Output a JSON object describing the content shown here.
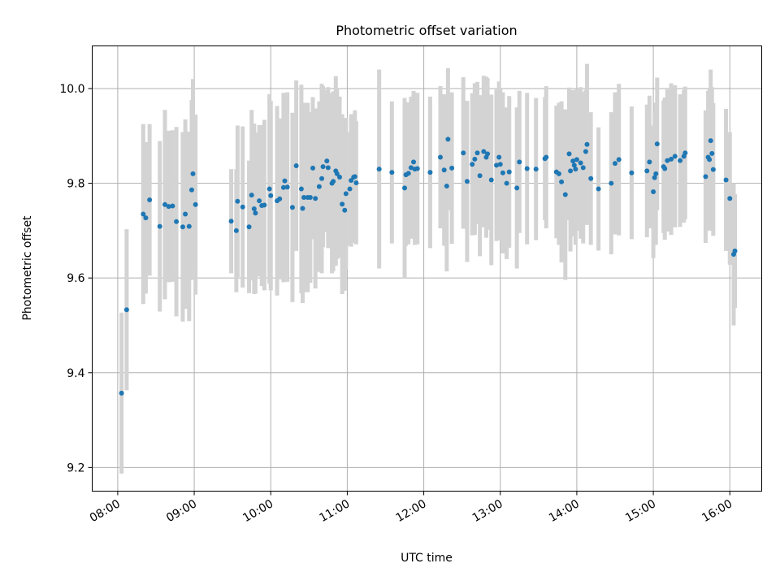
{
  "chart_data": {
    "type": "scatter",
    "title": "Photometric offset variation",
    "xlabel": "UTC time",
    "ylabel": "Photometric offset",
    "xlim": [
      "07:40",
      "16:25"
    ],
    "ylim": [
      9.15,
      10.09
    ],
    "grid": true,
    "x_ticks": [
      "08:00",
      "09:00",
      "10:00",
      "11:00",
      "12:00",
      "13:00",
      "14:00",
      "15:00",
      "16:00"
    ],
    "y_ticks": [
      "9.2",
      "9.4",
      "9.6",
      "9.8",
      "10.0"
    ],
    "colors": {
      "point": "#1f77b4",
      "errorbar": "#d3d3d3",
      "grid": "#b0b0b0"
    },
    "series": [
      {
        "x": [
          "08:03",
          "08:07",
          "08:20",
          "08:22",
          "08:25",
          "08:33",
          "08:37",
          "08:40",
          "08:43",
          "08:46",
          "08:51",
          "08:53",
          "08:56",
          "08:58",
          "08:59",
          "09:01",
          "09:29",
          "09:33",
          "09:34",
          "09:38",
          "09:43",
          "09:45",
          "09:47",
          "09:48",
          "09:51",
          "09:53",
          "09:55",
          "09:59",
          "10:00",
          "10:05",
          "10:07",
          "10:10",
          "10:11",
          "10:13",
          "10:17",
          "10:20",
          "10:24",
          "10:25",
          "10:26",
          "10:29",
          "10:31",
          "10:33",
          "10:35",
          "10:38",
          "10:40",
          "10:41",
          "10:44",
          "10:45",
          "10:48",
          "10:49",
          "10:51",
          "10:52",
          "10:54",
          "10:56",
          "10:58",
          "10:59",
          "11:02",
          "11:03",
          "11:05",
          "11:06",
          "11:07",
          "11:25",
          "11:35",
          "11:45",
          "11:46",
          "11:48",
          "11:50",
          "11:52",
          "11:53",
          "11:55",
          "12:05",
          "12:13",
          "12:16",
          "12:18",
          "12:19",
          "12:22",
          "12:31",
          "12:34",
          "12:38",
          "12:40",
          "12:42",
          "12:44",
          "12:47",
          "12:49",
          "12:50",
          "12:53",
          "12:57",
          "12:59",
          "13:00",
          "13:02",
          "13:05",
          "13:07",
          "13:13",
          "13:15",
          "13:21",
          "13:28",
          "13:35",
          "13:36",
          "13:44",
          "13:46",
          "13:48",
          "13:51",
          "13:54",
          "13:55",
          "13:57",
          "13:58",
          "13:59",
          "14:00",
          "14:03",
          "14:05",
          "14:07",
          "14:08",
          "14:11",
          "14:17",
          "14:27",
          "14:30",
          "14:33",
          "14:43",
          "14:55",
          "14:57",
          "15:00",
          "15:01",
          "15:02",
          "15:03",
          "15:08",
          "15:09",
          "15:11",
          "15:14",
          "15:17",
          "15:21",
          "15:24",
          "15:25",
          "15:41",
          "15:43",
          "15:44",
          "15:45",
          "15:46",
          "15:47",
          "15:57",
          "16:00",
          "16:03",
          "16:04"
        ],
        "y": [
          9.357,
          9.533,
          9.735,
          9.727,
          9.765,
          9.709,
          9.755,
          9.751,
          9.752,
          9.719,
          9.708,
          9.735,
          9.709,
          9.786,
          9.82,
          9.755,
          9.72,
          9.7,
          9.762,
          9.75,
          9.708,
          9.775,
          9.746,
          9.737,
          9.763,
          9.753,
          9.754,
          9.788,
          9.774,
          9.763,
          9.767,
          9.791,
          9.805,
          9.792,
          9.749,
          9.837,
          9.788,
          9.747,
          9.77,
          9.77,
          9.77,
          9.832,
          9.768,
          9.793,
          9.81,
          9.835,
          9.847,
          9.833,
          9.8,
          9.804,
          9.826,
          9.82,
          9.813,
          9.756,
          9.743,
          9.778,
          9.788,
          9.806,
          9.813,
          9.814,
          9.801,
          9.83,
          9.823,
          9.79,
          9.818,
          9.821,
          9.833,
          9.845,
          9.83,
          9.831,
          9.823,
          9.855,
          9.828,
          9.794,
          9.893,
          9.832,
          9.864,
          9.804,
          9.84,
          9.851,
          9.864,
          9.816,
          9.867,
          9.855,
          9.862,
          9.807,
          9.838,
          9.855,
          9.84,
          9.822,
          9.8,
          9.824,
          9.79,
          9.845,
          9.831,
          9.83,
          9.852,
          9.855,
          9.824,
          9.82,
          9.803,
          9.776,
          9.862,
          9.826,
          9.847,
          9.838,
          9.83,
          9.85,
          9.843,
          9.833,
          9.867,
          9.882,
          9.81,
          9.788,
          9.8,
          9.842,
          9.85,
          9.822,
          9.826,
          9.845,
          9.782,
          9.812,
          9.82,
          9.883,
          9.835,
          9.831,
          9.848,
          9.851,
          9.857,
          9.848,
          9.857,
          9.864,
          9.814,
          9.855,
          9.85,
          9.89,
          9.863,
          9.829,
          9.807,
          9.768,
          9.65,
          9.657
        ],
        "yerr": [
          0.17,
          0.17,
          0.19,
          0.16,
          0.16,
          0.18,
          0.2,
          0.16,
          0.16,
          0.2,
          0.2,
          0.2,
          0.2,
          0.19,
          0.2,
          0.19,
          0.11,
          0.13,
          0.16,
          0.17,
          0.14,
          0.18,
          0.18,
          0.17,
          0.16,
          0.17,
          0.18,
          0.2,
          0.2,
          0.2,
          0.17,
          0.2,
          0.18,
          0.2,
          0.2,
          0.18,
          0.22,
          0.2,
          0.2,
          0.2,
          0.18,
          0.15,
          0.19,
          0.18,
          0.2,
          0.17,
          0.15,
          0.17,
          0.19,
          0.19,
          0.2,
          0.18,
          0.17,
          0.19,
          0.17,
          0.16,
          0.12,
          0.14,
          0.13,
          0.14,
          0.13,
          0.21,
          0.15,
          0.19,
          0.15,
          0.15,
          0.15,
          0.15,
          0.16,
          0.16,
          0.16,
          0.15,
          0.16,
          0.18,
          0.15,
          0.16,
          0.16,
          0.17,
          0.15,
          0.16,
          0.15,
          0.17,
          0.16,
          0.17,
          0.16,
          0.18,
          0.16,
          0.16,
          0.16,
          0.17,
          0.16,
          0.16,
          0.17,
          0.15,
          0.16,
          0.15,
          0.13,
          0.15,
          0.14,
          0.15,
          0.17,
          0.18,
          0.14,
          0.17,
          0.15,
          0.15,
          0.16,
          0.15,
          0.16,
          0.16,
          0.13,
          0.17,
          0.14,
          0.13,
          0.15,
          0.15,
          0.16,
          0.14,
          0.14,
          0.14,
          0.14,
          0.14,
          0.15,
          0.14,
          0.14,
          0.15,
          0.15,
          0.16,
          0.15,
          0.14,
          0.14,
          0.14,
          0.14,
          0.14,
          0.15,
          0.15,
          0.14,
          0.14,
          0.15,
          0.14,
          0.15,
          0.12
        ]
      }
    ]
  }
}
